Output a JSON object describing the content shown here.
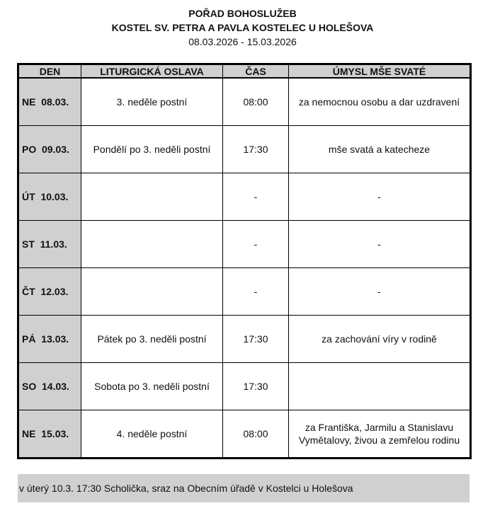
{
  "header": {
    "title": "POŘAD BOHOSLUŽEB",
    "subtitle": "KOSTEL SV. PETRA A PAVLA KOSTELEC U HOLEŠOVA",
    "date_range": "08.03.2026 - 15.03.2026"
  },
  "table": {
    "columns": [
      "DEN",
      "LITURGICKÁ OSLAVA",
      "ČAS",
      "ÚMYSL MŠE SVATÉ"
    ],
    "rows": [
      {
        "day": "NE  08.03.",
        "celebration": "3. neděle postní",
        "time": "08:00",
        "intention": "za nemocnou osobu a dar uzdravení"
      },
      {
        "day": "PO  09.03.",
        "celebration": "Pondělí po 3. neděli postní",
        "time": "17:30",
        "intention": "mše svatá a katecheze"
      },
      {
        "day": "ÚT  10.03.",
        "celebration": "",
        "time": "-",
        "intention": "-"
      },
      {
        "day": "ST  11.03.",
        "celebration": "",
        "time": "-",
        "intention": "-"
      },
      {
        "day": "ČT  12.03.",
        "celebration": "",
        "time": "-",
        "intention": "-"
      },
      {
        "day": "PÁ  13.03.",
        "celebration": "Pátek po 3. neděli postní",
        "time": "17:30",
        "intention": "za zachování víry v rodině"
      },
      {
        "day": "SO  14.03.",
        "celebration": "Sobota po 3. neděli postní",
        "time": "17:30",
        "intention": ""
      },
      {
        "day": "NE  15.03.",
        "celebration": "4. neděle postní",
        "time": "08:00",
        "intention": "za Františka, Jarmilu a Stanislavu Vymětalovy, živou a zemřelou rodinu"
      }
    ]
  },
  "note": "v úterý 10.3. 17:30 Scholička, sraz na Obecním úřadě v Kostelci u Holešova"
}
